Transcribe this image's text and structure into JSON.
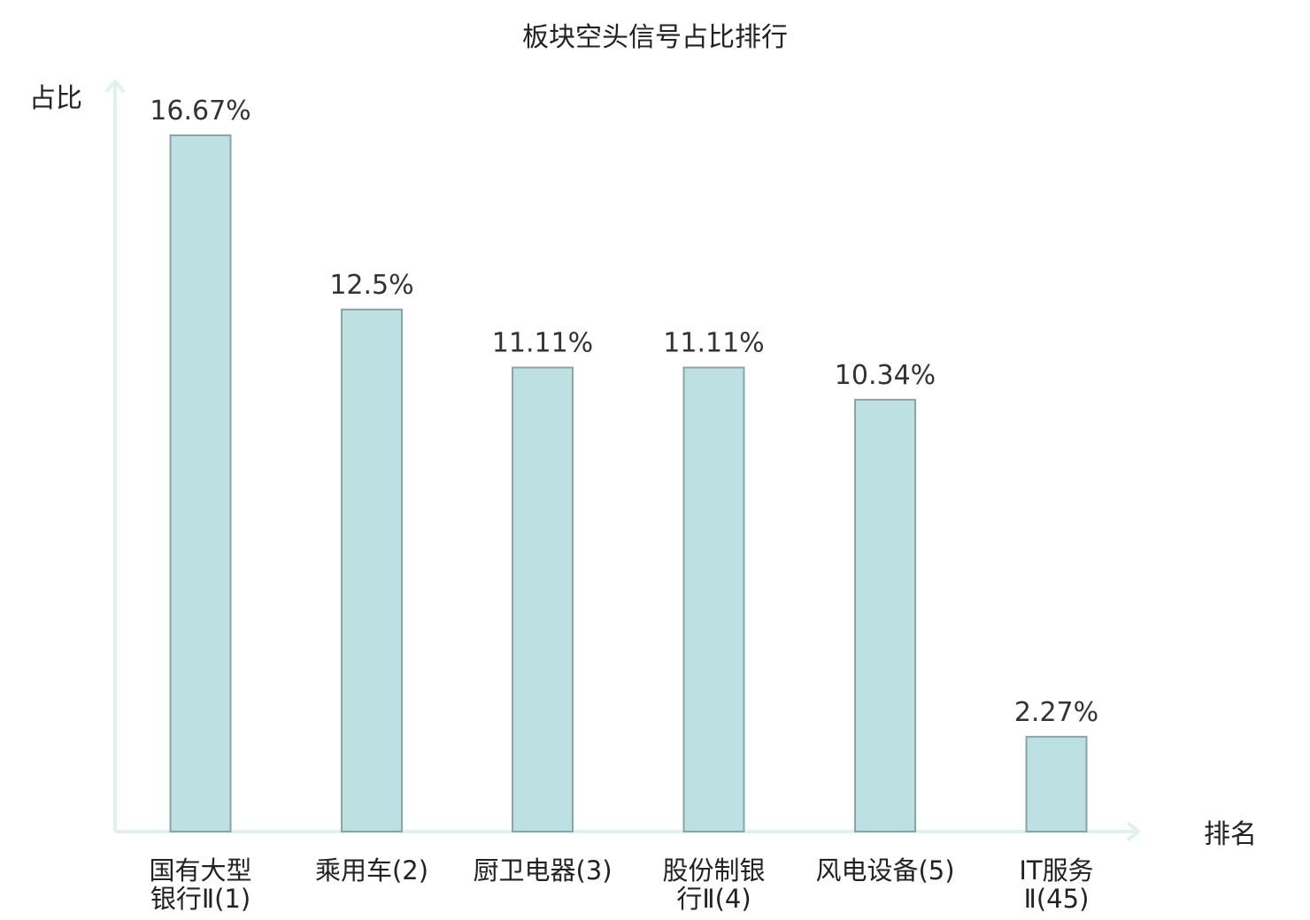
{
  "chart_data": {
    "type": "bar",
    "title": "板块空头信号占比排行",
    "ylabel": "占比",
    "xlabel": "排名",
    "categories": [
      [
        "国有大型",
        "银行Ⅱ(1)"
      ],
      [
        "乘用车(2)"
      ],
      [
        "厨卫电器(3)"
      ],
      [
        "股份制银",
        "行Ⅱ(4)"
      ],
      [
        "风电设备(5)"
      ],
      [
        "IT服务",
        "Ⅱ(45)"
      ]
    ],
    "values": [
      16.67,
      12.5,
      11.11,
      11.11,
      10.34,
      2.27
    ],
    "value_labels": [
      "16.67%",
      "12.5%",
      "11.11%",
      "11.11%",
      "10.34%",
      "2.27%"
    ],
    "highlight_index": 5,
    "ylim": [
      0,
      17.5
    ],
    "grid": false,
    "legend": "none"
  },
  "colors": {
    "bar_fill": "#bde0e3",
    "bar_stroke": "#8aa5a8",
    "axis": "#dff2f0",
    "text": "#222222",
    "highlight": "#e01f1f"
  }
}
